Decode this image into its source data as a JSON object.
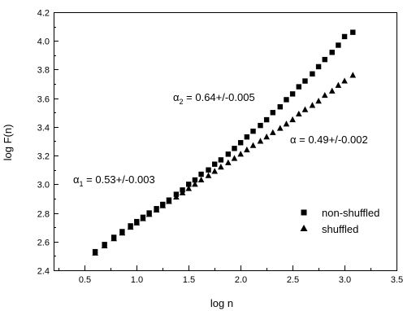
{
  "chart_data": {
    "type": "scatter",
    "title": "",
    "xlabel": "log n",
    "ylabel": "log F(n)",
    "xlim": [
      0.2,
      3.5
    ],
    "ylim": [
      2.4,
      4.2
    ],
    "x_major_ticks": [
      "0.5",
      "1.0",
      "1.5",
      "2.0",
      "2.5",
      "3.0",
      "3.5"
    ],
    "y_major_ticks": [
      "2.4",
      "2.6",
      "2.8",
      "3.0",
      "3.2",
      "3.4",
      "3.6",
      "3.8",
      "4.0",
      "4.2"
    ],
    "grid": false,
    "legend_position": "bottom-right",
    "series": [
      {
        "name": "non-shuffled",
        "marker": "square",
        "color": "#000000",
        "points": [
          [
            0.6,
            2.53
          ],
          [
            0.69,
            2.58
          ],
          [
            0.78,
            2.63
          ],
          [
            0.86,
            2.67
          ],
          [
            0.94,
            2.71
          ],
          [
            1.0,
            2.74
          ],
          [
            1.06,
            2.77
          ],
          [
            1.12,
            2.8
          ],
          [
            1.19,
            2.83
          ],
          [
            1.25,
            2.86
          ],
          [
            1.31,
            2.89
          ],
          [
            1.38,
            2.93
          ],
          [
            1.44,
            2.96
          ],
          [
            1.5,
            3.0
          ],
          [
            1.56,
            3.03
          ],
          [
            1.62,
            3.07
          ],
          [
            1.69,
            3.1
          ],
          [
            1.75,
            3.14
          ],
          [
            1.81,
            3.17
          ],
          [
            1.88,
            3.21
          ],
          [
            1.94,
            3.25
          ],
          [
            2.0,
            3.29
          ],
          [
            2.06,
            3.33
          ],
          [
            2.12,
            3.37
          ],
          [
            2.19,
            3.41
          ],
          [
            2.25,
            3.45
          ],
          [
            2.31,
            3.5
          ],
          [
            2.38,
            3.54
          ],
          [
            2.44,
            3.59
          ],
          [
            2.5,
            3.63
          ],
          [
            2.56,
            3.68
          ],
          [
            2.62,
            3.72
          ],
          [
            2.69,
            3.77
          ],
          [
            2.75,
            3.82
          ],
          [
            2.81,
            3.87
          ],
          [
            2.88,
            3.92
          ],
          [
            2.94,
            3.97
          ],
          [
            3.0,
            4.03
          ],
          [
            3.08,
            4.06
          ]
        ]
      },
      {
        "name": "shuffled",
        "marker": "triangle",
        "color": "#000000",
        "points": [
          [
            0.6,
            2.52
          ],
          [
            0.69,
            2.57
          ],
          [
            0.78,
            2.62
          ],
          [
            0.86,
            2.66
          ],
          [
            0.94,
            2.7
          ],
          [
            1.0,
            2.73
          ],
          [
            1.06,
            2.76
          ],
          [
            1.12,
            2.79
          ],
          [
            1.19,
            2.82
          ],
          [
            1.25,
            2.85
          ],
          [
            1.31,
            2.88
          ],
          [
            1.38,
            2.91
          ],
          [
            1.44,
            2.94
          ],
          [
            1.5,
            2.97
          ],
          [
            1.56,
            3.0
          ],
          [
            1.62,
            3.03
          ],
          [
            1.69,
            3.06
          ],
          [
            1.75,
            3.09
          ],
          [
            1.81,
            3.12
          ],
          [
            1.88,
            3.15
          ],
          [
            1.94,
            3.18
          ],
          [
            2.0,
            3.21
          ],
          [
            2.06,
            3.24
          ],
          [
            2.12,
            3.27
          ],
          [
            2.19,
            3.3
          ],
          [
            2.25,
            3.33
          ],
          [
            2.31,
            3.36
          ],
          [
            2.38,
            3.39
          ],
          [
            2.44,
            3.42
          ],
          [
            2.5,
            3.45
          ],
          [
            2.56,
            3.49
          ],
          [
            2.62,
            3.52
          ],
          [
            2.69,
            3.55
          ],
          [
            2.75,
            3.58
          ],
          [
            2.81,
            3.62
          ],
          [
            2.88,
            3.65
          ],
          [
            2.94,
            3.69
          ],
          [
            3.0,
            3.72
          ],
          [
            3.08,
            3.76
          ]
        ]
      }
    ],
    "annotations": {
      "alpha1": {
        "symbol": "α",
        "subscript": "1",
        "text": " = 0.53+/-0.003"
      },
      "alpha2": {
        "symbol": "α",
        "subscript": "2",
        "text": " = 0.64+/-0.005"
      },
      "alpha": {
        "symbol": "α",
        "subscript": "",
        "text": " = 0.49+/-0.002"
      }
    }
  }
}
